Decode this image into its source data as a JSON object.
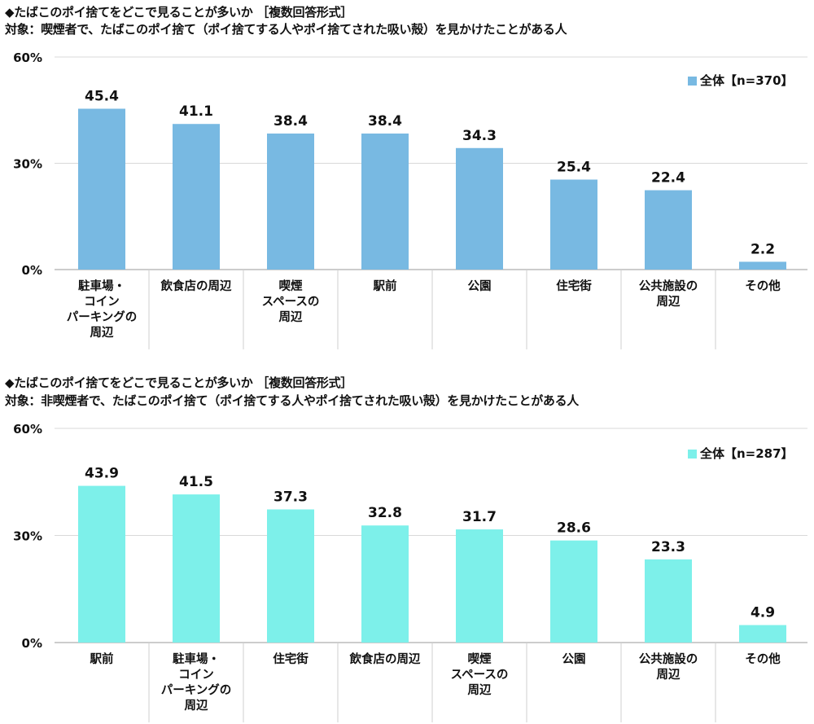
{
  "chart_data": [
    {
      "type": "bar",
      "title": "◆たばこのポイ捨てをどこで見ることが多いか ［複数回答形式］",
      "subtitle": "対象：喫煙者で、たばこのポイ捨て（ポイ捨てする人やポイ捨てされた吸い殻）を見かけたことがある人",
      "categories": [
        "駐車場・\nコイン\nパーキングの\n周辺",
        "飲食店の周辺",
        "喫煙\nスペースの\n周辺",
        "駅前",
        "公園",
        "住宅街",
        "公共施設の\n周辺",
        "その他"
      ],
      "values": [
        45.4,
        41.1,
        38.4,
        38.4,
        34.3,
        25.4,
        22.4,
        2.2
      ],
      "value_labels": [
        "45.4",
        "41.1",
        "38.4",
        "38.4",
        "34.3",
        "25.4",
        "22.4",
        "2.2"
      ],
      "series": [
        {
          "name": "全体【n=370】",
          "color": "#78b9e2"
        }
      ],
      "yticks": [
        "0%",
        "30%",
        "60%"
      ],
      "ylim": [
        0,
        60
      ],
      "xlabel": "",
      "ylabel": "",
      "grid": true,
      "legend": "top-right"
    },
    {
      "type": "bar",
      "title": "◆たばこのポイ捨てをどこで見ることが多いか ［複数回答形式］",
      "subtitle": "対象：非喫煙者で、たばこのポイ捨て（ポイ捨てする人やポイ捨てされた吸い殻）を見かけたことがある人",
      "categories": [
        "駅前",
        "駐車場・\nコイン\nパーキングの\n周辺",
        "住宅街",
        "飲食店の周辺",
        "喫煙\nスペースの\n周辺",
        "公園",
        "公共施設の\n周辺",
        "その他"
      ],
      "values": [
        43.9,
        41.5,
        37.3,
        32.8,
        31.7,
        28.6,
        23.3,
        4.9
      ],
      "value_labels": [
        "43.9",
        "41.5",
        "37.3",
        "32.8",
        "31.7",
        "28.6",
        "23.3",
        "4.9"
      ],
      "series": [
        {
          "name": "全体【n=287】",
          "color": "#7df0ea"
        }
      ],
      "yticks": [
        "0%",
        "30%",
        "60%"
      ],
      "ylim": [
        0,
        60
      ],
      "xlabel": "",
      "ylabel": "",
      "grid": true,
      "legend": "top-right"
    }
  ]
}
